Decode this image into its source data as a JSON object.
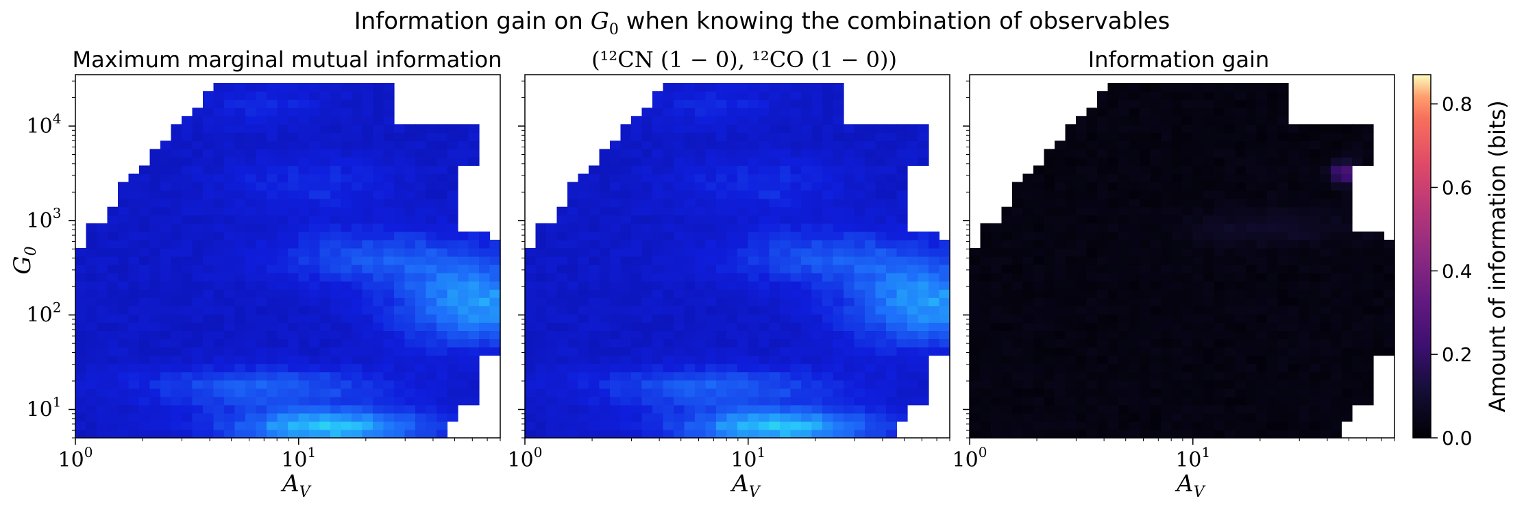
{
  "figure": {
    "title_prefix": "Information gain on ",
    "title_symbol": "G",
    "title_symbol_sub": "0",
    "title_suffix": " when knowing the combination of observables"
  },
  "colorbar": {
    "label": "Amount of information (bits)",
    "ticks": [
      "0.0",
      "0.2",
      "0.4",
      "0.6",
      "0.8"
    ],
    "range": [
      0,
      0.87
    ],
    "colormap": "magma"
  },
  "panels": [
    {
      "title": "Maximum marginal mutual information",
      "colormap": "winter-to-jet-ish blue"
    },
    {
      "title": "(¹²CN (1 − 0), ¹²CO (1 − 0))",
      "colormap": "winter-to-jet-ish blue"
    },
    {
      "title": "Information gain",
      "colormap": "magma"
    }
  ],
  "axes": {
    "xlabel_main": "A",
    "xlabel_sub": "V",
    "ylabel_main": "G",
    "ylabel_sub": "0",
    "xticks": [
      {
        "base": "10",
        "exp": "0",
        "value": 1
      },
      {
        "base": "10",
        "exp": "1",
        "value": 10
      }
    ],
    "yticks": [
      {
        "base": "10",
        "exp": "1",
        "value": 10
      },
      {
        "base": "10",
        "exp": "2",
        "value": 100
      },
      {
        "base": "10",
        "exp": "3",
        "value": 1000
      },
      {
        "base": "10",
        "exp": "4",
        "value": 10000
      }
    ]
  },
  "chart_data": [
    {
      "type": "heatmap",
      "title": "Maximum marginal mutual information",
      "xlabel": "A_V",
      "ylabel": "G_0",
      "xscale": "log",
      "yscale": "log",
      "xlim": [
        1,
        80
      ],
      "ylim": [
        5,
        35000
      ],
      "colormap": "blue",
      "value_range_bits": [
        0.15,
        0.85
      ]
    },
    {
      "type": "heatmap",
      "title": "(12CN (1-0), 12CO (1-0))",
      "xlabel": "A_V",
      "ylabel": "",
      "xscale": "log",
      "yscale": "log",
      "xlim": [
        1,
        80
      ],
      "ylim": [
        5,
        35000
      ],
      "colormap": "blue",
      "value_range_bits": [
        0.15,
        0.85
      ]
    },
    {
      "type": "heatmap",
      "title": "Information gain",
      "xlabel": "A_V",
      "ylabel": "",
      "xscale": "log",
      "yscale": "log",
      "xlim": [
        1,
        80
      ],
      "ylim": [
        5,
        35000
      ],
      "colormap": "magma",
      "value_range_bits": [
        0.0,
        0.3
      ],
      "colorbar_range": [
        0,
        0.87
      ]
    }
  ]
}
